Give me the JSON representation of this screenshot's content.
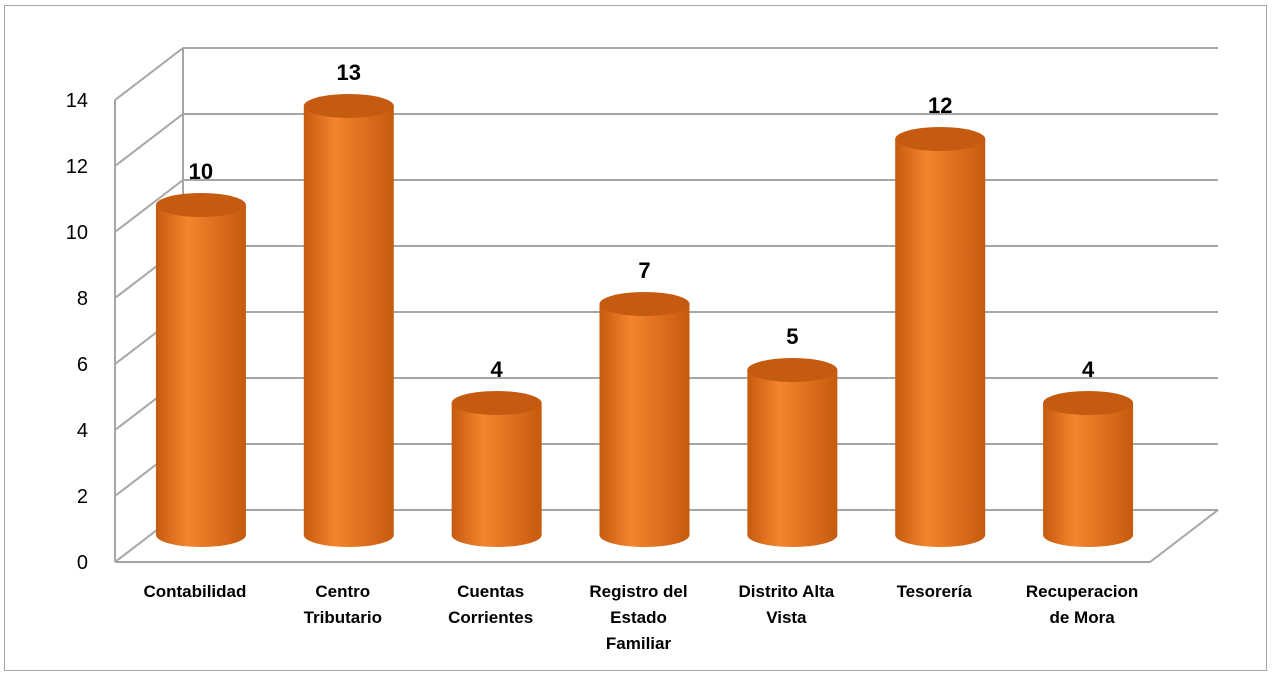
{
  "chart_data": {
    "type": "bar",
    "style": "3d-cylinder",
    "categories": [
      [
        "Contabilidad"
      ],
      [
        "Centro",
        "Tributario"
      ],
      [
        "Cuentas",
        "Corrientes"
      ],
      [
        "Registro del",
        "Estado",
        "Familiar"
      ],
      [
        "Distrito Alta",
        "Vista"
      ],
      [
        "Tesorería"
      ],
      [
        "Recuperacion",
        "de Mora"
      ]
    ],
    "values": [
      10,
      13,
      4,
      7,
      5,
      12,
      4
    ],
    "data_labels": [
      "10",
      "13",
      "4",
      "7",
      "5",
      "12",
      "4"
    ],
    "y_ticks": [
      "0",
      "2",
      "4",
      "6",
      "8",
      "10",
      "12",
      "14"
    ],
    "ylim": [
      0,
      14
    ],
    "grid": true,
    "legend": "none",
    "title": "",
    "xlabel": "",
    "ylabel": "",
    "colors": {
      "bar_top": "#c55a11",
      "bar_light": "#f4852e",
      "bar_dark": "#c65a0e",
      "bar_mid": "#ed7112",
      "grid": "#a6a6a6",
      "frame": "#a6a6a6"
    }
  }
}
